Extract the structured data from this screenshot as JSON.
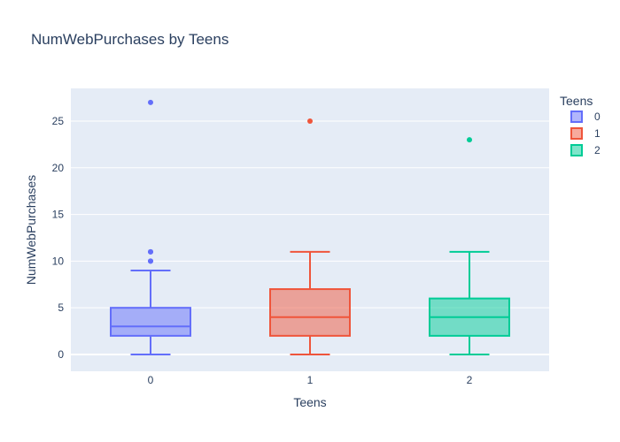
{
  "chart_data": {
    "type": "box",
    "title": "NumWebPurchases by Teens",
    "xlabel": "Teens",
    "ylabel": "NumWebPurchases",
    "categories": [
      "0",
      "1",
      "2"
    ],
    "ylim": [
      -1.8,
      28.5
    ],
    "yticks": [
      0,
      5,
      10,
      15,
      20,
      25
    ],
    "grid": true,
    "legend": {
      "title": "Teens",
      "placement": "right",
      "entries": [
        "0",
        "1",
        "2"
      ]
    },
    "series": [
      {
        "name": "0",
        "color": "#636efa",
        "min": 0,
        "q1": 2,
        "median": 3,
        "q3": 5,
        "max": 9,
        "outliers": [
          10,
          10,
          11,
          11,
          27
        ]
      },
      {
        "name": "1",
        "color": "#ef553b",
        "min": 0,
        "q1": 2,
        "median": 4,
        "q3": 7,
        "max": 11,
        "outliers": [
          25
        ]
      },
      {
        "name": "2",
        "color": "#00cc96",
        "min": 0,
        "q1": 2,
        "median": 4,
        "q3": 6,
        "max": 11,
        "outliers": [
          23
        ]
      }
    ]
  }
}
